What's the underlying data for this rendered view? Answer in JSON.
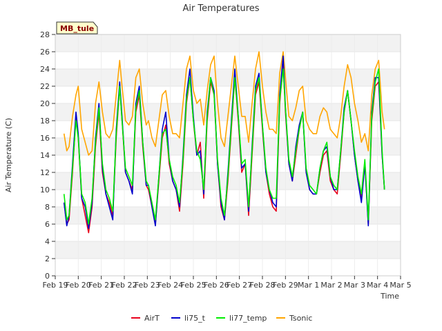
{
  "chart_data": {
    "type": "line",
    "title": "Air Temperatures",
    "badge": "MB_tule",
    "xlabel": "Time",
    "ylabel": "Air Temperature (C)",
    "ylim": [
      0,
      28
    ],
    "yticks": [
      0,
      2,
      4,
      6,
      8,
      10,
      12,
      14,
      16,
      18,
      20,
      22,
      24,
      26,
      28
    ],
    "xlim": [
      0,
      15
    ],
    "xtick_labels": [
      "Feb 19",
      "Feb 20",
      "Feb 21",
      "Feb 22",
      "Feb 23",
      "Feb 24",
      "Feb 25",
      "Feb 26",
      "Feb 27",
      "Feb 28",
      "Feb 29",
      "Mar 1",
      "Mar 2",
      "Mar 3",
      "Mar 4",
      "Mar 5"
    ],
    "grid": true,
    "legend_position": "bottom",
    "series": [
      {
        "name": "AirT",
        "color": "#e8001c",
        "x": [
          0.38,
          0.5,
          0.6,
          0.75,
          0.9,
          1.0,
          1.15,
          1.3,
          1.45,
          1.6,
          1.75,
          1.9,
          2.05,
          2.2,
          2.35,
          2.5,
          2.65,
          2.8,
          2.9,
          3.05,
          3.2,
          3.35,
          3.5,
          3.65,
          3.8,
          3.95,
          4.05,
          4.2,
          4.35,
          4.5,
          4.65,
          4.8,
          4.95,
          5.1,
          5.25,
          5.4,
          5.55,
          5.7,
          5.85,
          6.0,
          6.15,
          6.3,
          6.45,
          6.6,
          6.75,
          6.9,
          7.05,
          7.2,
          7.35,
          7.5,
          7.65,
          7.8,
          7.95,
          8.1,
          8.25,
          8.4,
          8.55,
          8.7,
          8.85,
          9.0,
          9.15,
          9.3,
          9.45,
          9.6,
          9.75,
          9.9,
          10.0,
          10.15,
          10.3,
          10.45,
          10.6,
          10.75,
          10.9,
          11.05,
          11.2,
          11.35,
          11.5,
          11.65,
          11.8,
          11.95,
          12.1,
          12.25,
          12.4,
          12.55,
          12.7,
          12.85,
          13.0,
          13.15,
          13.3,
          13.45,
          13.6,
          13.75,
          13.9,
          14.05,
          14.2,
          14.3
        ],
        "values": [
          8.5,
          6.0,
          6.5,
          12.0,
          18.5,
          16.0,
          9.0,
          7.0,
          5.0,
          8.0,
          15.0,
          19.0,
          12.0,
          9.5,
          8.5,
          7.0,
          16.0,
          22.0,
          18.0,
          12.0,
          11.0,
          10.0,
          19.0,
          21.0,
          15.0,
          10.5,
          10.0,
          8.0,
          6.0,
          11.0,
          16.0,
          17.5,
          13.0,
          11.0,
          10.0,
          7.5,
          13.0,
          20.0,
          23.0,
          18.0,
          14.0,
          15.5,
          9.0,
          18.0,
          22.5,
          21.0,
          13.0,
          8.0,
          6.5,
          11.0,
          17.0,
          23.0,
          18.0,
          12.0,
          13.0,
          7.0,
          14.0,
          21.0,
          22.5,
          17.0,
          12.0,
          9.5,
          8.0,
          7.5,
          20.0,
          24.5,
          19.0,
          13.0,
          11.0,
          14.0,
          17.0,
          19.0,
          12.0,
          10.0,
          9.5,
          9.5,
          12.0,
          14.0,
          14.5,
          11.0,
          10.0,
          9.5,
          14.0,
          19.0,
          21.5,
          18.0,
          14.0,
          11.0,
          9.0,
          13.0,
          6.0,
          18.0,
          22.0,
          22.5,
          14.0,
          10.0
        ]
      },
      {
        "name": "li75_t",
        "color": "#0000cc",
        "x": [
          0.38,
          0.5,
          0.6,
          0.75,
          0.9,
          1.0,
          1.15,
          1.3,
          1.45,
          1.6,
          1.75,
          1.9,
          2.05,
          2.2,
          2.35,
          2.5,
          2.65,
          2.8,
          2.9,
          3.05,
          3.2,
          3.35,
          3.5,
          3.65,
          3.8,
          3.95,
          4.05,
          4.2,
          4.35,
          4.5,
          4.65,
          4.8,
          4.95,
          5.1,
          5.25,
          5.4,
          5.55,
          5.7,
          5.85,
          6.0,
          6.15,
          6.3,
          6.45,
          6.6,
          6.75,
          6.9,
          7.05,
          7.2,
          7.35,
          7.5,
          7.65,
          7.8,
          7.95,
          8.1,
          8.25,
          8.4,
          8.55,
          8.7,
          8.85,
          9.0,
          9.15,
          9.3,
          9.45,
          9.6,
          9.75,
          9.9,
          10.0,
          10.15,
          10.3,
          10.45,
          10.6,
          10.75,
          10.9,
          11.05,
          11.2,
          11.35,
          11.5,
          11.65,
          11.8,
          11.95,
          12.1,
          12.25,
          12.4,
          12.55,
          12.7,
          12.85,
          13.0,
          13.15,
          13.3,
          13.45,
          13.6,
          13.75,
          13.9,
          14.05,
          14.2,
          14.3
        ],
        "values": [
          8.5,
          5.8,
          7.0,
          13.0,
          19.0,
          16.5,
          9.0,
          8.0,
          5.5,
          8.5,
          16.0,
          20.0,
          12.5,
          9.5,
          8.0,
          6.5,
          17.0,
          22.5,
          18.5,
          12.0,
          11.0,
          9.5,
          20.0,
          22.0,
          15.5,
          10.5,
          10.5,
          8.0,
          5.8,
          11.5,
          17.0,
          19.0,
          13.5,
          11.0,
          10.0,
          8.0,
          14.0,
          21.0,
          24.0,
          18.5,
          14.0,
          14.5,
          9.5,
          19.0,
          23.0,
          21.5,
          13.0,
          8.5,
          6.5,
          12.0,
          18.0,
          24.0,
          18.5,
          12.5,
          13.0,
          7.5,
          15.0,
          22.0,
          23.5,
          17.5,
          12.0,
          10.0,
          8.5,
          8.0,
          21.0,
          25.5,
          19.5,
          13.0,
          11.0,
          15.0,
          17.5,
          19.0,
          12.0,
          10.0,
          9.5,
          9.5,
          12.5,
          14.5,
          15.0,
          11.5,
          10.0,
          10.0,
          14.5,
          19.5,
          21.5,
          18.0,
          14.0,
          11.0,
          8.5,
          13.0,
          5.8,
          19.0,
          23.0,
          23.0,
          14.0,
          10.0
        ]
      },
      {
        "name": "li77_temp",
        "color": "#00ee00",
        "x": [
          0.38,
          0.5,
          0.6,
          0.75,
          0.9,
          1.0,
          1.15,
          1.3,
          1.45,
          1.6,
          1.75,
          1.9,
          2.05,
          2.2,
          2.35,
          2.5,
          2.65,
          2.8,
          2.9,
          3.05,
          3.2,
          3.35,
          3.5,
          3.65,
          3.8,
          3.95,
          4.05,
          4.2,
          4.35,
          4.5,
          4.65,
          4.8,
          4.95,
          5.1,
          5.25,
          5.4,
          5.55,
          5.7,
          5.85,
          6.0,
          6.15,
          6.3,
          6.45,
          6.6,
          6.75,
          6.9,
          7.05,
          7.2,
          7.35,
          7.5,
          7.65,
          7.8,
          7.95,
          8.1,
          8.25,
          8.4,
          8.55,
          8.7,
          8.85,
          9.0,
          9.15,
          9.3,
          9.45,
          9.6,
          9.75,
          9.9,
          10.0,
          10.15,
          10.3,
          10.45,
          10.6,
          10.75,
          10.9,
          11.05,
          11.2,
          11.35,
          11.5,
          11.65,
          11.8,
          11.95,
          12.1,
          12.25,
          12.4,
          12.55,
          12.7,
          12.85,
          13.0,
          13.15,
          13.3,
          13.45,
          13.6,
          13.75,
          13.9,
          14.05,
          14.2,
          14.3
        ],
        "values": [
          9.5,
          6.5,
          7.0,
          12.5,
          18.0,
          16.0,
          9.5,
          8.5,
          6.0,
          9.0,
          15.5,
          19.5,
          13.0,
          10.0,
          9.0,
          7.5,
          16.5,
          22.0,
          18.0,
          12.5,
          11.5,
          10.5,
          19.5,
          21.5,
          15.5,
          11.0,
          10.5,
          8.5,
          6.5,
          11.5,
          16.5,
          17.0,
          13.5,
          11.5,
          10.5,
          8.5,
          13.5,
          20.5,
          23.0,
          18.0,
          14.5,
          13.5,
          10.0,
          18.5,
          23.0,
          21.0,
          13.5,
          9.0,
          7.0,
          11.5,
          17.5,
          23.0,
          18.5,
          13.0,
          13.5,
          8.0,
          14.5,
          21.5,
          23.0,
          17.5,
          12.5,
          10.0,
          9.0,
          9.0,
          20.5,
          24.0,
          19.5,
          13.5,
          11.5,
          14.5,
          17.0,
          19.0,
          12.5,
          10.5,
          10.0,
          9.5,
          12.5,
          14.5,
          15.5,
          11.5,
          10.5,
          10.0,
          14.5,
          19.0,
          21.5,
          18.0,
          14.5,
          11.5,
          9.5,
          13.5,
          6.5,
          18.5,
          22.5,
          24.0,
          14.5,
          10.0
        ]
      },
      {
        "name": "Tsonic",
        "color": "#ffa500",
        "x": [
          0.38,
          0.5,
          0.6,
          0.75,
          0.9,
          1.0,
          1.15,
          1.3,
          1.45,
          1.6,
          1.75,
          1.9,
          2.05,
          2.2,
          2.35,
          2.5,
          2.65,
          2.8,
          2.9,
          3.05,
          3.2,
          3.35,
          3.5,
          3.65,
          3.8,
          3.95,
          4.05,
          4.2,
          4.35,
          4.5,
          4.65,
          4.8,
          4.95,
          5.1,
          5.25,
          5.4,
          5.55,
          5.7,
          5.85,
          6.0,
          6.15,
          6.3,
          6.45,
          6.6,
          6.75,
          6.9,
          7.05,
          7.2,
          7.35,
          7.5,
          7.65,
          7.8,
          7.95,
          8.1,
          8.25,
          8.4,
          8.55,
          8.7,
          8.85,
          9.0,
          9.15,
          9.3,
          9.45,
          9.6,
          9.75,
          9.9,
          10.0,
          10.15,
          10.3,
          10.45,
          10.6,
          10.75,
          10.9,
          11.05,
          11.2,
          11.35,
          11.5,
          11.65,
          11.8,
          11.95,
          12.1,
          12.25,
          12.4,
          12.55,
          12.7,
          12.85,
          13.0,
          13.15,
          13.3,
          13.45,
          13.6,
          13.75,
          13.9,
          14.05,
          14.2,
          14.3
        ],
        "values": [
          16.5,
          14.5,
          15.0,
          18.5,
          21.0,
          22.0,
          17.0,
          15.5,
          14.0,
          14.5,
          20.0,
          22.5,
          19.0,
          16.5,
          16.0,
          17.0,
          21.0,
          25.0,
          22.0,
          18.0,
          17.5,
          18.5,
          23.0,
          24.0,
          20.0,
          17.5,
          18.0,
          16.0,
          15.0,
          18.0,
          21.0,
          21.5,
          18.5,
          16.5,
          16.5,
          16.0,
          20.0,
          24.0,
          25.5,
          21.5,
          20.0,
          20.5,
          17.5,
          21.5,
          24.5,
          25.5,
          20.0,
          16.0,
          15.0,
          18.5,
          22.0,
          25.5,
          22.0,
          18.5,
          18.5,
          15.5,
          20.0,
          24.0,
          26.0,
          22.0,
          19.0,
          17.0,
          17.0,
          16.5,
          23.5,
          26.0,
          23.0,
          18.5,
          18.0,
          19.5,
          21.5,
          22.0,
          18.0,
          17.0,
          16.5,
          16.5,
          18.5,
          19.5,
          19.0,
          17.0,
          16.5,
          16.0,
          18.5,
          22.0,
          24.5,
          23.0,
          20.0,
          18.0,
          15.5,
          16.5,
          14.5,
          21.0,
          24.0,
          25.0,
          19.0,
          17.0
        ]
      }
    ]
  }
}
